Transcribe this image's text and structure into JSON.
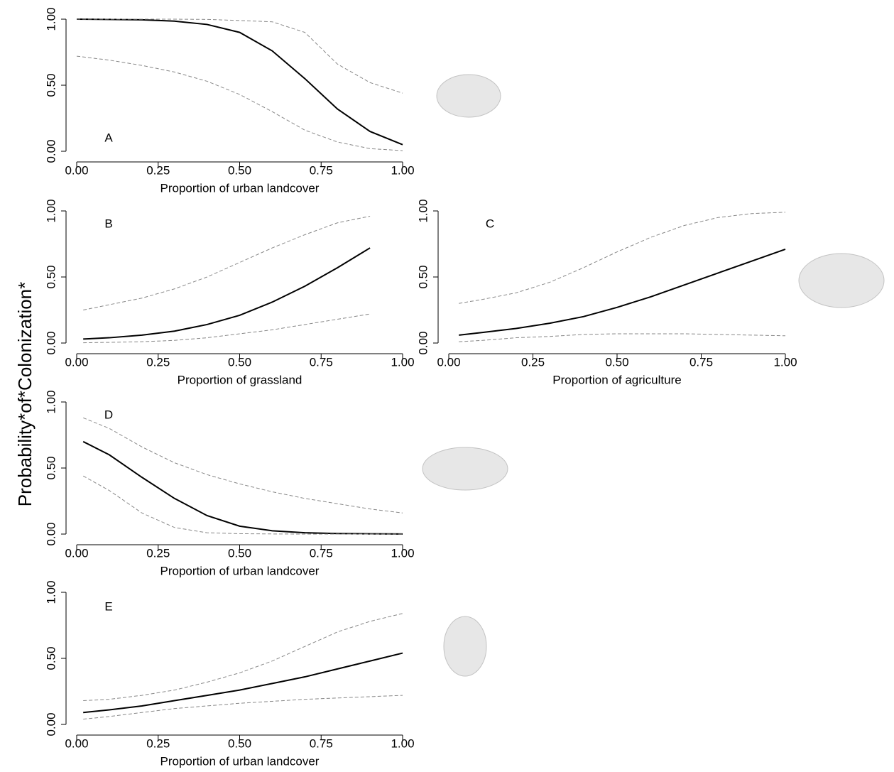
{
  "y_axis_label": "Probability*of*Colonization*",
  "chart_data": [
    {
      "type": "line",
      "annotation": "A",
      "xlabel": "Proportion of urban landcover",
      "xlim": [
        0,
        1
      ],
      "ylim": [
        0,
        1
      ],
      "xticks": [
        {
          "value": 0,
          "label": "0.00"
        },
        {
          "value": 0.25,
          "label": "0.25"
        },
        {
          "value": 0.5,
          "label": "0.50"
        },
        {
          "value": 0.75,
          "label": "0.75"
        },
        {
          "value": 1,
          "label": "1.00"
        }
      ],
      "yticks": [
        {
          "value": 0,
          "label": "0.00"
        },
        {
          "value": 0.5,
          "label": "0.50"
        },
        {
          "value": 1,
          "label": "1.00"
        }
      ],
      "x": [
        0,
        0.1,
        0.2,
        0.3,
        0.4,
        0.5,
        0.6,
        0.7,
        0.8,
        0.9,
        1.0
      ],
      "series": [
        {
          "color": "#000000",
          "linestyle": "solid",
          "values": [
            1.0,
            0.998,
            0.995,
            0.985,
            0.96,
            0.9,
            0.76,
            0.55,
            0.32,
            0.15,
            0.05
          ]
        },
        {
          "color": "#888888",
          "linestyle": "dashed",
          "values": [
            1.0,
            1.0,
            1.0,
            1.0,
            0.998,
            0.99,
            0.98,
            0.9,
            0.66,
            0.52,
            0.44
          ]
        },
        {
          "color": "#888888",
          "linestyle": "dashed",
          "values": [
            0.72,
            0.69,
            0.65,
            0.6,
            0.53,
            0.43,
            0.3,
            0.16,
            0.07,
            0.02,
            0.005
          ]
        }
      ]
    },
    {
      "type": "line",
      "annotation": "B",
      "xlabel": "Proportion of grassland",
      "xlim": [
        0,
        1
      ],
      "ylim": [
        0,
        1
      ],
      "xticks": [
        {
          "value": 0,
          "label": "0.00"
        },
        {
          "value": 0.25,
          "label": "0.25"
        },
        {
          "value": 0.5,
          "label": "0.50"
        },
        {
          "value": 0.75,
          "label": "0.75"
        },
        {
          "value": 1,
          "label": "1.00"
        }
      ],
      "yticks": [
        {
          "value": 0,
          "label": "0.00"
        },
        {
          "value": 0.5,
          "label": "0.50"
        },
        {
          "value": 1,
          "label": "1.00"
        }
      ],
      "x": [
        0.02,
        0.1,
        0.2,
        0.3,
        0.4,
        0.5,
        0.6,
        0.7,
        0.8,
        0.9
      ],
      "series": [
        {
          "color": "#000000",
          "linestyle": "solid",
          "values": [
            0.03,
            0.04,
            0.06,
            0.09,
            0.14,
            0.21,
            0.31,
            0.43,
            0.57,
            0.72
          ]
        },
        {
          "color": "#888888",
          "linestyle": "dashed",
          "values": [
            0.25,
            0.29,
            0.34,
            0.41,
            0.5,
            0.61,
            0.72,
            0.82,
            0.91,
            0.96
          ]
        },
        {
          "color": "#888888",
          "linestyle": "dashed",
          "values": [
            0.002,
            0.005,
            0.01,
            0.02,
            0.04,
            0.07,
            0.1,
            0.14,
            0.18,
            0.22
          ]
        }
      ]
    },
    {
      "type": "line",
      "annotation": "C",
      "xlabel": "Proportion of agriculture",
      "xlim": [
        0,
        1
      ],
      "ylim": [
        0,
        1
      ],
      "xticks": [
        {
          "value": 0,
          "label": "0.00"
        },
        {
          "value": 0.25,
          "label": "0.25"
        },
        {
          "value": 0.5,
          "label": "0.50"
        },
        {
          "value": 0.75,
          "label": "0.75"
        },
        {
          "value": 1,
          "label": "1.00"
        }
      ],
      "yticks": [
        {
          "value": 0,
          "label": "0.00"
        },
        {
          "value": 0.5,
          "label": "0.50"
        },
        {
          "value": 1,
          "label": "1.00"
        }
      ],
      "x": [
        0.03,
        0.1,
        0.2,
        0.3,
        0.4,
        0.5,
        0.6,
        0.7,
        0.8,
        0.9,
        1.0
      ],
      "series": [
        {
          "color": "#000000",
          "linestyle": "solid",
          "values": [
            0.06,
            0.08,
            0.11,
            0.15,
            0.2,
            0.27,
            0.35,
            0.44,
            0.53,
            0.62,
            0.71
          ]
        },
        {
          "color": "#888888",
          "linestyle": "dashed",
          "values": [
            0.3,
            0.33,
            0.38,
            0.46,
            0.57,
            0.69,
            0.8,
            0.89,
            0.95,
            0.98,
            0.99
          ]
        },
        {
          "color": "#888888",
          "linestyle": "dashed",
          "values": [
            0.01,
            0.02,
            0.04,
            0.05,
            0.065,
            0.07,
            0.07,
            0.07,
            0.065,
            0.06,
            0.055
          ]
        }
      ]
    },
    {
      "type": "line",
      "annotation": "D",
      "xlabel": "Proportion of urban landcover",
      "xlim": [
        0,
        1
      ],
      "ylim": [
        0,
        1
      ],
      "xticks": [
        {
          "value": 0,
          "label": "0.00"
        },
        {
          "value": 0.25,
          "label": "0.25"
        },
        {
          "value": 0.5,
          "label": "0.50"
        },
        {
          "value": 0.75,
          "label": "0.75"
        },
        {
          "value": 1,
          "label": "1.00"
        }
      ],
      "yticks": [
        {
          "value": 0,
          "label": "0.00"
        },
        {
          "value": 0.5,
          "label": "0.50"
        },
        {
          "value": 1,
          "label": "1.00"
        }
      ],
      "x": [
        0.02,
        0.1,
        0.2,
        0.3,
        0.4,
        0.5,
        0.6,
        0.7,
        0.8,
        0.9,
        1.0
      ],
      "series": [
        {
          "color": "#000000",
          "linestyle": "solid",
          "values": [
            0.7,
            0.6,
            0.43,
            0.27,
            0.14,
            0.06,
            0.025,
            0.01,
            0.004,
            0.002,
            0.001
          ]
        },
        {
          "color": "#888888",
          "linestyle": "dashed",
          "values": [
            0.88,
            0.8,
            0.66,
            0.54,
            0.45,
            0.38,
            0.32,
            0.27,
            0.23,
            0.19,
            0.16
          ]
        },
        {
          "color": "#888888",
          "linestyle": "dashed",
          "values": [
            0.44,
            0.33,
            0.16,
            0.05,
            0.01,
            0.003,
            0.001,
            0,
            0,
            0,
            0
          ]
        }
      ]
    },
    {
      "type": "line",
      "annotation": "E",
      "xlabel": "Proportion of urban landcover",
      "xlim": [
        0,
        1
      ],
      "ylim": [
        0,
        1
      ],
      "xticks": [
        {
          "value": 0,
          "label": "0.00"
        },
        {
          "value": 0.25,
          "label": "0.25"
        },
        {
          "value": 0.5,
          "label": "0.50"
        },
        {
          "value": 0.75,
          "label": "0.75"
        },
        {
          "value": 1,
          "label": "1.00"
        }
      ],
      "yticks": [
        {
          "value": 0,
          "label": "0.00"
        },
        {
          "value": 0.5,
          "label": "0.50"
        },
        {
          "value": 1,
          "label": "1.00"
        }
      ],
      "x": [
        0.02,
        0.1,
        0.2,
        0.3,
        0.4,
        0.5,
        0.6,
        0.7,
        0.8,
        0.9,
        1.0
      ],
      "series": [
        {
          "color": "#000000",
          "linestyle": "solid",
          "values": [
            0.09,
            0.11,
            0.14,
            0.18,
            0.22,
            0.26,
            0.31,
            0.36,
            0.42,
            0.48,
            0.54
          ]
        },
        {
          "color": "#888888",
          "linestyle": "dashed",
          "values": [
            0.18,
            0.19,
            0.22,
            0.26,
            0.32,
            0.39,
            0.48,
            0.59,
            0.7,
            0.78,
            0.84
          ]
        },
        {
          "color": "#888888",
          "linestyle": "dashed",
          "values": [
            0.04,
            0.06,
            0.09,
            0.12,
            0.14,
            0.16,
            0.175,
            0.19,
            0.2,
            0.21,
            0.22
          ]
        }
      ]
    }
  ]
}
